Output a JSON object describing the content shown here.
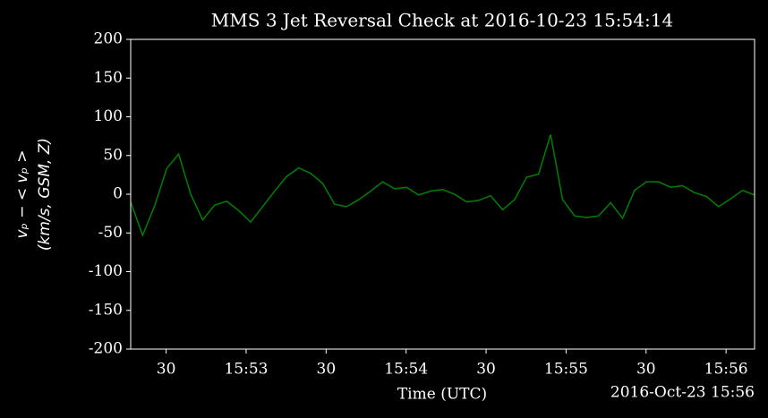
{
  "chart_data": {
    "type": "line",
    "title": "MMS 3 Jet Reversal Check at 2016-10-23 15:54:14",
    "xlabel": "Time (UTC)",
    "x_offset_label": "2016-Oct-23 15:56",
    "ylabel": [
      "vₚ − < vₚ >",
      "(km/s, GSM, Z)"
    ],
    "xlim": [
      16.7,
      250.7
    ],
    "xticks": [
      30,
      {
        "value": 60,
        "label": "15:53"
      },
      {
        "value": 90,
        "label": "30"
      },
      {
        "value": 120,
        "label": "15:54"
      },
      {
        "value": 150,
        "label": "30"
      },
      {
        "value": 180,
        "label": "15:55"
      },
      {
        "value": 210,
        "label": "30"
      },
      {
        "value": 240,
        "label": "15:56"
      }
    ],
    "ylim": [
      -200,
      200
    ],
    "yticks": [
      -200,
      -150,
      -100,
      -50,
      0,
      50,
      100,
      150,
      200
    ],
    "x": [
      16.7,
      21.2,
      25.7,
      30.2,
      34.7,
      39.2,
      43.7,
      48.2,
      52.7,
      57.2,
      61.7,
      66.2,
      70.7,
      75.2,
      79.7,
      84.2,
      88.7,
      93.2,
      97.7,
      102.2,
      106.7,
      111.2,
      115.7,
      120.2,
      124.7,
      129.2,
      133.7,
      138.2,
      142.7,
      147.2,
      151.7,
      156.2,
      160.7,
      165.2,
      169.7,
      174.2,
      178.7,
      183.2,
      187.7,
      192.2,
      196.7,
      201.2,
      205.7,
      210.2,
      214.7,
      219.2,
      223.7,
      228.2,
      232.7,
      237.2,
      241.7,
      246.2,
      250.7
    ],
    "series": [
      {
        "color": "#008000",
        "values": [
          -10,
          -53,
          -15,
          33,
          52,
          0,
          -33,
          -14,
          -9,
          -21,
          -36,
          -16,
          4,
          23,
          34,
          27,
          14,
          -13,
          -16,
          -7,
          4,
          16,
          7,
          9,
          -1,
          4,
          6,
          0,
          -10,
          -8,
          -2,
          -20,
          -7,
          22,
          26,
          77,
          -7,
          -28,
          -30,
          -28,
          -11,
          -31,
          5,
          16,
          16,
          9,
          11,
          2,
          -3,
          -16,
          -6,
          5,
          -1
        ]
      }
    ]
  }
}
